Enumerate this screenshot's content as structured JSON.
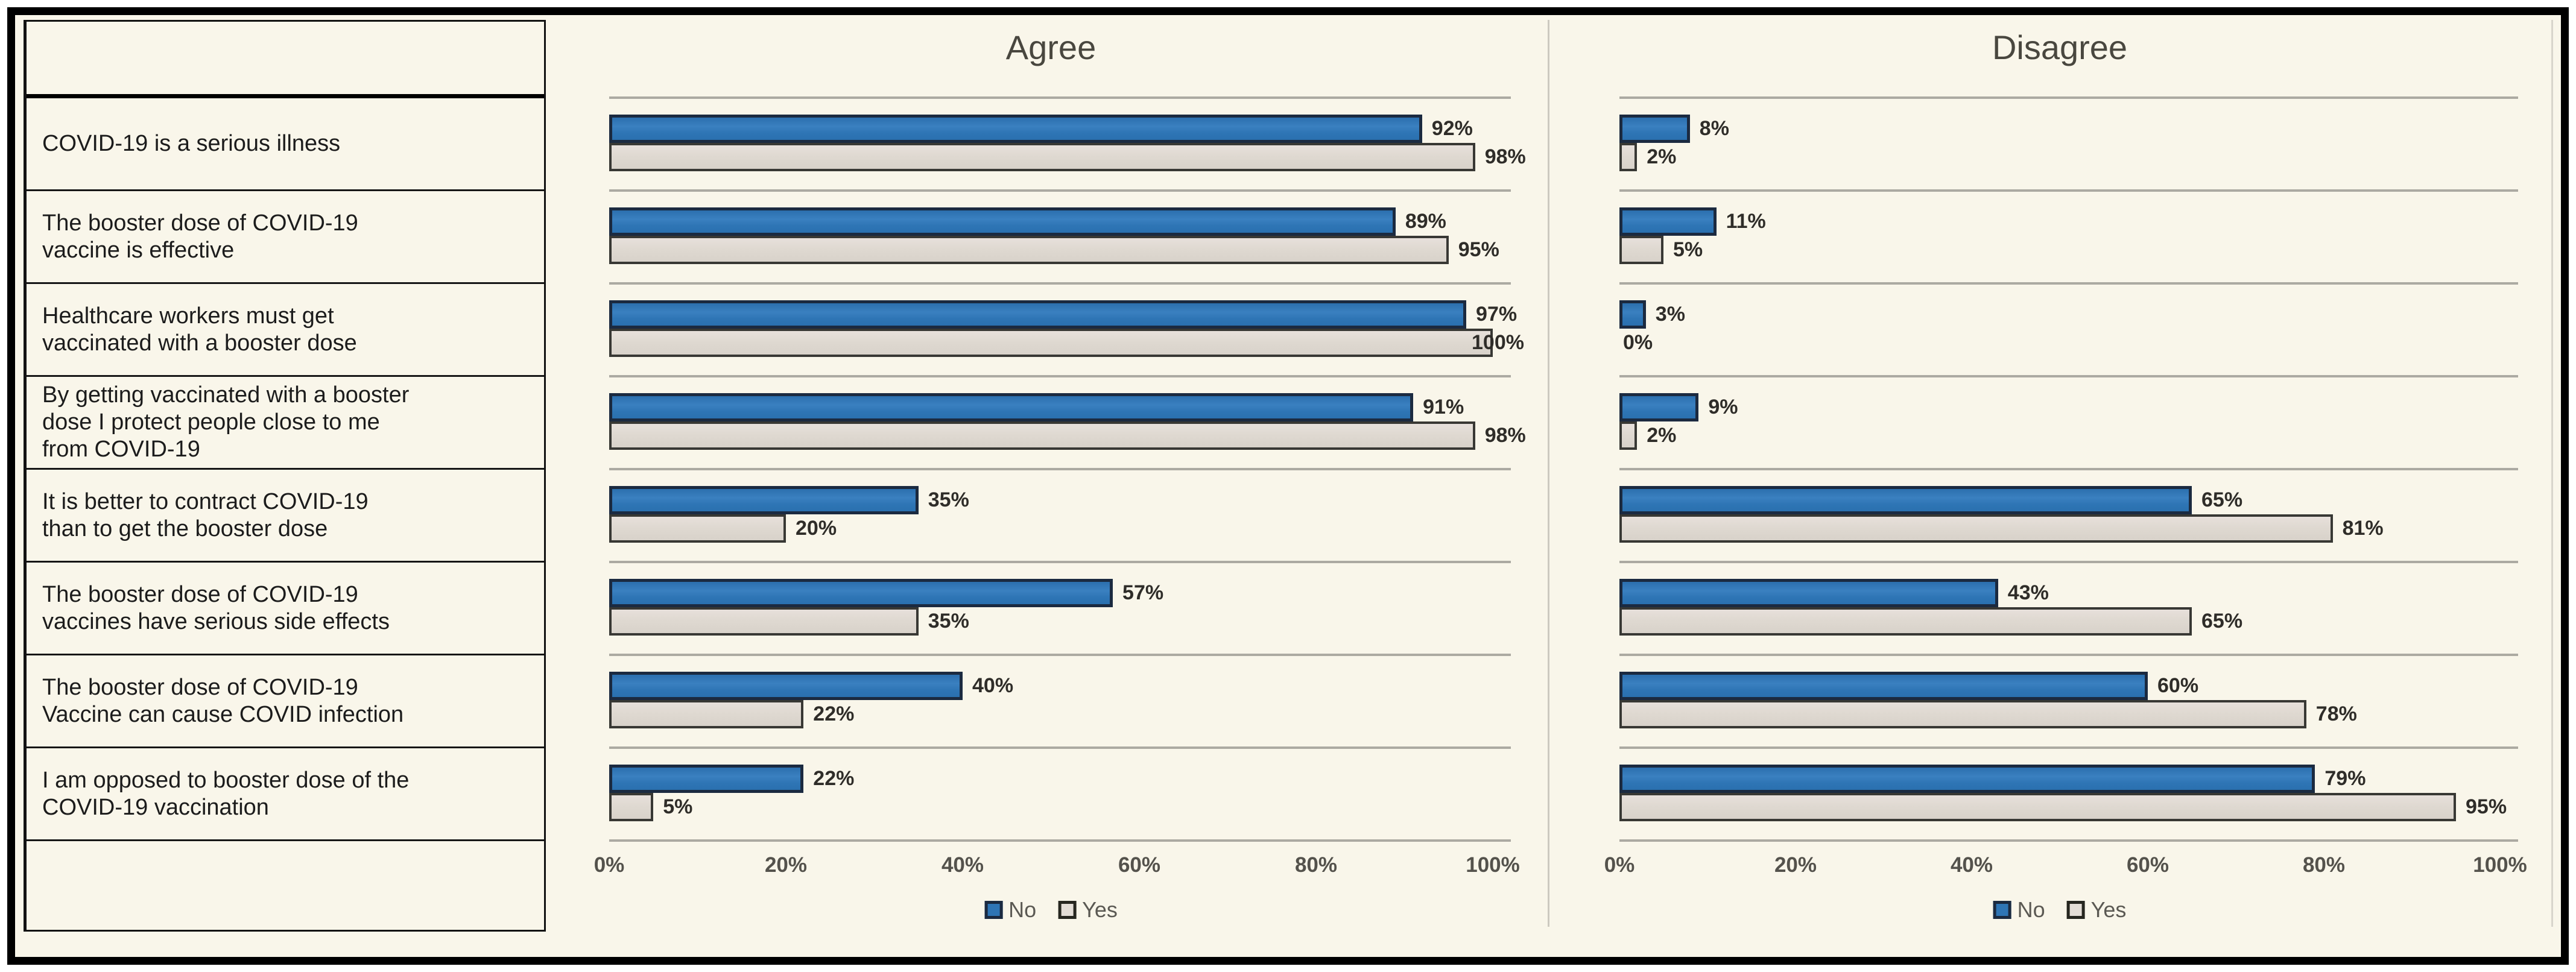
{
  "table": {
    "rows": [
      "COVID-19 is a serious illness",
      "The booster dose of COVID-19\nvaccine is effective",
      "Healthcare workers must get\nvaccinated with a booster dose",
      "By getting vaccinated with a booster\ndose I protect people close to me\nfrom COVID-19",
      "It is better to contract COVID-19\nthan to get the booster dose",
      "The booster dose of COVID-19\nvaccines have serious side effects",
      "The booster dose of COVID-19\nVaccine can cause COVID infection",
      "I am opposed to booster dose of the\nCOVID-19 vaccination"
    ]
  },
  "chart_data": [
    {
      "type": "bar",
      "title": "Agree",
      "orientation": "horizontal",
      "categories": [
        "COVID-19 is a serious illness",
        "The booster dose of COVID-19 vaccine is effective",
        "Healthcare workers must get vaccinated with a booster dose",
        "By getting vaccinated with a booster dose I protect people close to me from COVID-19",
        "It is better to contract COVID-19 than to get the booster dose",
        "The booster dose of COVID-19 vaccines have serious side effects",
        "The booster dose of COVID-19 Vaccine can cause COVID infection",
        "I am opposed to booster dose of the COVID-19 vaccination"
      ],
      "series": [
        {
          "name": "No",
          "color": "#2E75B5",
          "values": [
            92,
            89,
            97,
            91,
            35,
            57,
            40,
            22
          ]
        },
        {
          "name": "Yes",
          "color": "#DFD9D1",
          "values": [
            98,
            95,
            100,
            98,
            20,
            35,
            22,
            5
          ]
        }
      ],
      "value_label_suffix": "%",
      "xlabel": "",
      "ylabel": "",
      "xlim": [
        0,
        100
      ],
      "x_ticks": [
        "0%",
        "20%",
        "40%",
        "60%",
        "80%",
        "100%"
      ],
      "grid": "row separator lines",
      "legend_position": "bottom-center"
    },
    {
      "type": "bar",
      "title": "Disagree",
      "orientation": "horizontal",
      "categories": [
        "COVID-19 is a serious illness",
        "The booster dose of COVID-19 vaccine is effective",
        "Healthcare workers must get vaccinated with a booster dose",
        "By getting vaccinated with a booster dose I protect people close to me from COVID-19",
        "It is better to contract COVID-19 than to get the booster dose",
        "The booster dose of COVID-19 vaccines have serious side effects",
        "The booster dose of COVID-19 Vaccine can cause COVID infection",
        "I am opposed to booster dose of the COVID-19 vaccination"
      ],
      "series": [
        {
          "name": "No",
          "color": "#2E75B5",
          "values": [
            8,
            11,
            3,
            9,
            65,
            43,
            60,
            79
          ]
        },
        {
          "name": "Yes",
          "color": "#DFD9D1",
          "values": [
            2,
            5,
            0,
            2,
            81,
            65,
            78,
            95
          ]
        }
      ],
      "value_label_suffix": "%",
      "xlabel": "",
      "ylabel": "",
      "xlim": [
        0,
        100
      ],
      "x_ticks": [
        "0%",
        "20%",
        "40%",
        "60%",
        "80%",
        "100%"
      ],
      "grid": "row separator lines",
      "legend_position": "bottom-center"
    }
  ],
  "colors": {
    "background": "#F9F6EA",
    "frame_border": "#000000",
    "bar_no_fill": "#2E75B5",
    "bar_no_border": "#1B2A40",
    "bar_yes_fill": "#DFD9D1",
    "bar_yes_border": "#383834",
    "gridline": "#ACAAA2",
    "panel_divider": "#CCC9C0",
    "title_text": "#49473F",
    "tick_text": "#54524C",
    "value_label_text": "#2F2D29",
    "table_line": "#121212",
    "table_text": "#1C1C1C"
  }
}
